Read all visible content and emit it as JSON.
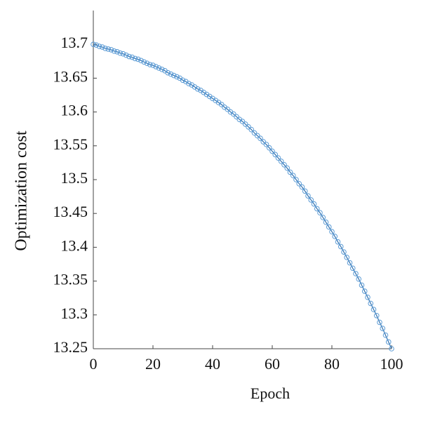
{
  "chart_data": {
    "type": "line",
    "xlabel": "Epoch",
    "ylabel": "Optimization cost",
    "x": [
      0,
      1,
      2,
      3,
      4,
      5,
      6,
      7,
      8,
      9,
      10,
      11,
      12,
      13,
      14,
      15,
      16,
      17,
      18,
      19,
      20,
      21,
      22,
      23,
      24,
      25,
      26,
      27,
      28,
      29,
      30,
      31,
      32,
      33,
      34,
      35,
      36,
      37,
      38,
      39,
      40,
      41,
      42,
      43,
      44,
      45,
      46,
      47,
      48,
      49,
      50,
      51,
      52,
      53,
      54,
      55,
      56,
      57,
      58,
      59,
      60,
      61,
      62,
      63,
      64,
      65,
      66,
      67,
      68,
      69,
      70,
      71,
      72,
      73,
      74,
      75,
      76,
      77,
      78,
      79,
      80,
      81,
      82,
      83,
      84,
      85,
      86,
      87,
      88,
      89,
      90,
      91,
      92,
      93,
      94,
      95,
      96,
      97,
      98,
      99,
      100
    ],
    "values": [
      13.7,
      13.699,
      13.697,
      13.696,
      13.694,
      13.693,
      13.692,
      13.69,
      13.689,
      13.687,
      13.686,
      13.684,
      13.682,
      13.681,
      13.679,
      13.678,
      13.676,
      13.674,
      13.672,
      13.67,
      13.669,
      13.667,
      13.665,
      13.663,
      13.661,
      13.658,
      13.656,
      13.654,
      13.652,
      13.65,
      13.647,
      13.645,
      13.642,
      13.64,
      13.637,
      13.634,
      13.632,
      13.629,
      13.626,
      13.623,
      13.62,
      13.617,
      13.614,
      13.611,
      13.607,
      13.604,
      13.6,
      13.597,
      13.593,
      13.589,
      13.586,
      13.582,
      13.578,
      13.574,
      13.569,
      13.565,
      13.561,
      13.556,
      13.552,
      13.547,
      13.542,
      13.537,
      13.532,
      13.527,
      13.522,
      13.517,
      13.511,
      13.506,
      13.5,
      13.494,
      13.489,
      13.483,
      13.476,
      13.47,
      13.464,
      13.457,
      13.451,
      13.444,
      13.437,
      13.43,
      13.423,
      13.416,
      13.408,
      13.401,
      13.393,
      13.385,
      13.377,
      13.369,
      13.361,
      13.353,
      13.344,
      13.335,
      13.326,
      13.317,
      13.308,
      13.299,
      13.289,
      13.28,
      13.27,
      13.26,
      13.25
    ],
    "color": "#2f6fae",
    "marker_color": "#5b9bd5",
    "xlim": [
      0,
      100
    ],
    "xticks": [
      0,
      20,
      40,
      60,
      80,
      100
    ],
    "ylim": [
      13.25,
      13.75
    ],
    "yticks": [
      13.25,
      13.3,
      13.35,
      13.4,
      13.45,
      13.5,
      13.55,
      13.6,
      13.65,
      13.7
    ],
    "grid": false
  }
}
